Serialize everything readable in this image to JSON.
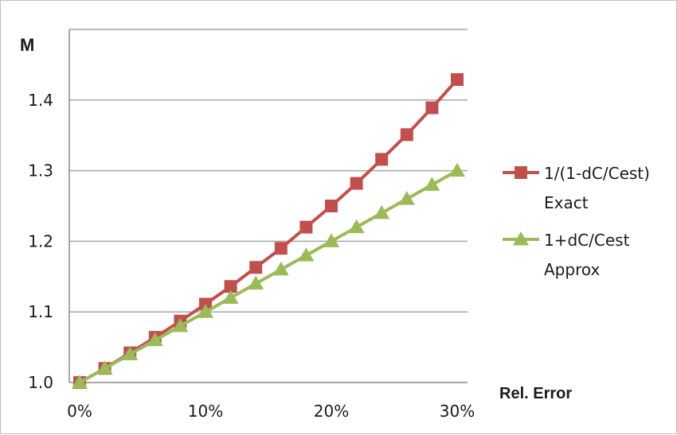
{
  "chart_data": {
    "type": "line",
    "ylabel": "M",
    "xlabel": "Rel. Error",
    "x_ticks": [
      "0%",
      "10%",
      "20%",
      "30%"
    ],
    "x_tick_values": [
      0,
      0.1,
      0.2,
      0.3
    ],
    "y_ticks": [
      "1.0",
      "1.1",
      "1.2",
      "1.3",
      "1.4"
    ],
    "y_tick_values": [
      1.0,
      1.1,
      1.2,
      1.3,
      1.4
    ],
    "xlim": [
      0,
      0.3
    ],
    "ylim": [
      1.0,
      1.5
    ],
    "grid": "horizontal",
    "legend_position": "right",
    "x": [
      0,
      0.02,
      0.04,
      0.06,
      0.08,
      0.1,
      0.12,
      0.14,
      0.16,
      0.18,
      0.2,
      0.22,
      0.24,
      0.26,
      0.28,
      0.3
    ],
    "series": [
      {
        "name": "1/(1-dC/Cest) Exact",
        "legend_lines": [
          "1/(1-dC/Cest)",
          "Exact"
        ],
        "color": "#c0504d",
        "marker": "square",
        "values": [
          1.0,
          1.02,
          1.042,
          1.064,
          1.087,
          1.111,
          1.136,
          1.163,
          1.19,
          1.22,
          1.25,
          1.282,
          1.316,
          1.351,
          1.389,
          1.429
        ]
      },
      {
        "name": "1+dC/Cest Approx",
        "legend_lines": [
          "1+dC/Cest",
          "Approx"
        ],
        "color": "#9bbb59",
        "marker": "triangle",
        "values": [
          1.0,
          1.02,
          1.04,
          1.06,
          1.08,
          1.1,
          1.12,
          1.14,
          1.16,
          1.18,
          1.2,
          1.22,
          1.24,
          1.26,
          1.28,
          1.3
        ]
      }
    ]
  }
}
